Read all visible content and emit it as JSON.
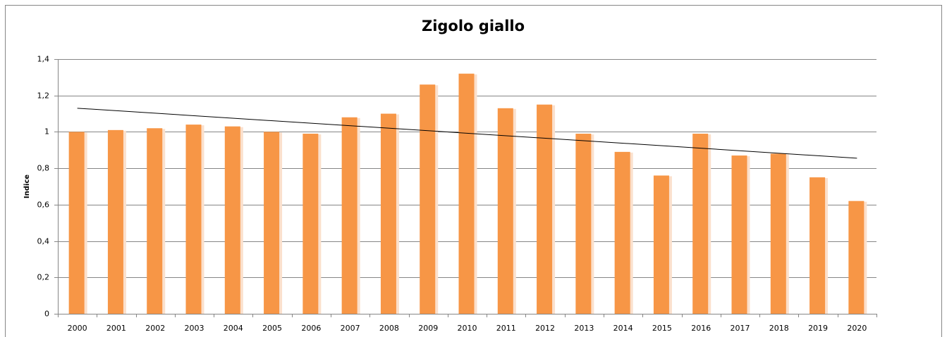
{
  "chart_data": {
    "type": "bar",
    "title": "Zigolo giallo",
    "y_label": "Indice",
    "categories": [
      "2000",
      "2001",
      "2002",
      "2003",
      "2004",
      "2005",
      "2006",
      "2007",
      "2008",
      "2009",
      "2010",
      "2011",
      "2012",
      "2013",
      "2014",
      "2015",
      "2016",
      "2017",
      "2018",
      "2019",
      "2020"
    ],
    "values": [
      1.0,
      1.01,
      1.02,
      1.04,
      1.03,
      1.0,
      0.99,
      1.08,
      1.1,
      1.26,
      1.32,
      1.13,
      1.15,
      0.99,
      0.89,
      0.76,
      0.99,
      0.87,
      0.88,
      0.75,
      0.62
    ],
    "color": "#f79646",
    "trendline": {
      "color": "#000000",
      "values": [
        1.13,
        0.855
      ]
    },
    "ylim": [
      0,
      1.4
    ],
    "yticks": [
      0,
      {
        "value": 0.2,
        "label": "0,2"
      },
      {
        "value": 0.4,
        "label": "0,4"
      },
      {
        "value": 0.6,
        "label": "0,6"
      },
      {
        "value": 0.8,
        "label": "0,8"
      },
      1,
      {
        "value": 1.2,
        "label": "1,2"
      },
      {
        "value": 1.4,
        "label": "1,4"
      }
    ],
    "grid": true
  }
}
